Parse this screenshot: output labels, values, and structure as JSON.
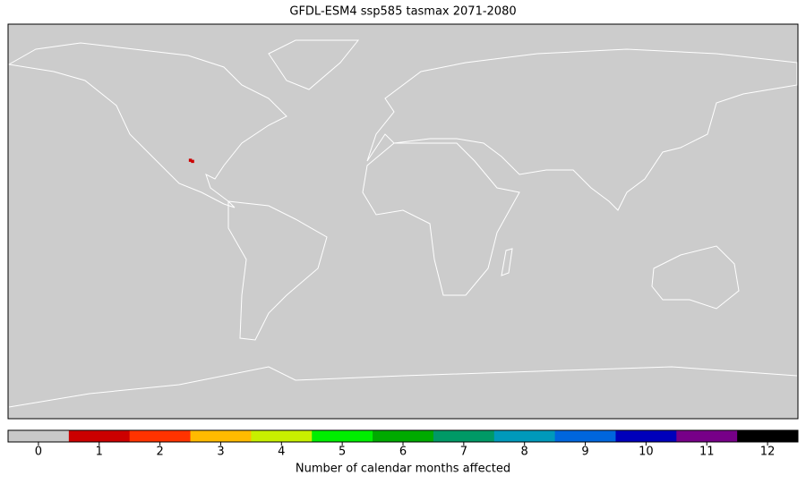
{
  "title": "GFDL-ESM4 ssp585 tasmax 2071-2080",
  "map": {
    "background": "#cccccc",
    "cells": [
      {
        "lon": -96,
        "lat": 27.5,
        "value": 1
      },
      {
        "lon": -97,
        "lat": 28,
        "value": 1
      }
    ]
  },
  "colorbar": {
    "label": "Number of calendar months affected",
    "ticks": [
      0,
      1,
      2,
      3,
      4,
      5,
      6,
      7,
      8,
      9,
      10,
      11,
      12
    ],
    "colors": [
      "#c8c8c8",
      "#cc0000",
      "#ff3300",
      "#ffbb00",
      "#c8f000",
      "#00ee00",
      "#00aa00",
      "#009966",
      "#0099bb",
      "#0066dd",
      "#0000bb",
      "#770088",
      "#000000"
    ]
  }
}
